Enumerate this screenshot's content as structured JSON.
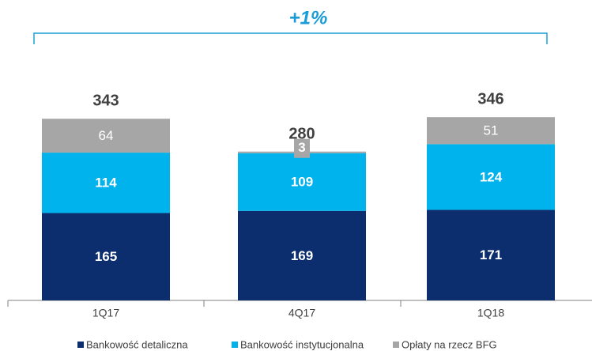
{
  "chart_data": {
    "type": "stacked_bar",
    "annotation": "+1%",
    "categories": [
      "1Q17",
      "4Q17",
      "1Q18"
    ],
    "series": [
      {
        "name": "Bankowość detaliczna",
        "color": "#0c2d6e",
        "values": [
          165,
          169,
          171
        ]
      },
      {
        "name": "Bankowość instytucjonalna",
        "color": "#00b3ec",
        "values": [
          114,
          109,
          124
        ]
      },
      {
        "name": "Opłaty na rzecz BFG",
        "color": "#a6a6a6",
        "values": [
          64,
          3,
          51
        ]
      }
    ],
    "totals": [
      343,
      280,
      346
    ]
  }
}
